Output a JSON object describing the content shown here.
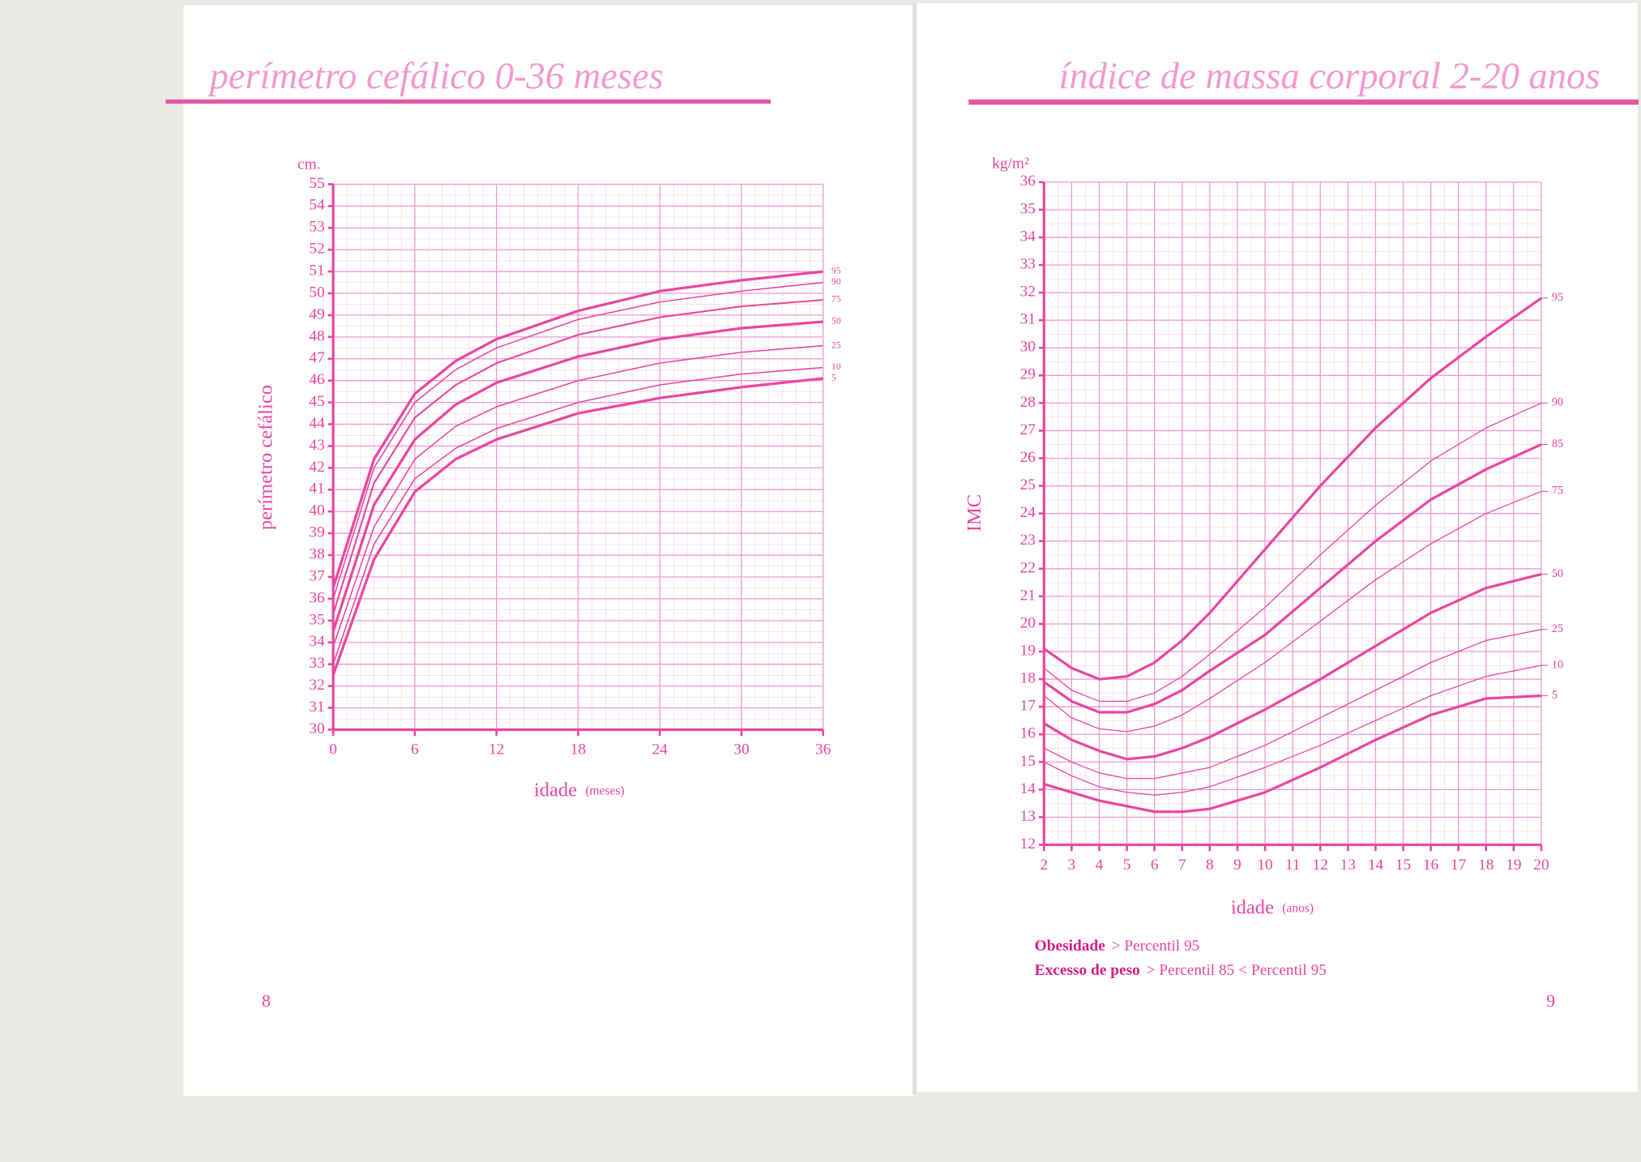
{
  "chart_data": [
    {
      "type": "line",
      "title": "perímetro cefálico 0-36 meses",
      "y_unit": "cm.",
      "ylabel": "perímetro cefálico",
      "xlabel": "idade",
      "xlabel_unit": "(meses)",
      "x": [
        0,
        3,
        6,
        9,
        12,
        18,
        24,
        30,
        36
      ],
      "xlim": [
        0,
        36
      ],
      "xticks": [
        0,
        6,
        12,
        18,
        24,
        30,
        36
      ],
      "ylim": [
        30,
        55
      ],
      "yticks": [
        30,
        31,
        32,
        33,
        34,
        35,
        36,
        37,
        38,
        39,
        40,
        41,
        42,
        43,
        44,
        45,
        46,
        47,
        48,
        49,
        50,
        51,
        52,
        53,
        54,
        55
      ],
      "grid": true,
      "series": [
        {
          "name": "95",
          "color": "#e8489f",
          "width": 2.5,
          "values": [
            36.5,
            42.4,
            45.4,
            46.9,
            47.9,
            49.2,
            50.1,
            50.6,
            51.0
          ]
        },
        {
          "name": "90",
          "color": "#e8489f",
          "width": 1.2,
          "values": [
            36.0,
            42.0,
            45.0,
            46.5,
            47.5,
            48.8,
            49.6,
            50.1,
            50.5
          ]
        },
        {
          "name": "75",
          "color": "#e8489f",
          "width": 1.6,
          "values": [
            35.3,
            41.3,
            44.3,
            45.8,
            46.8,
            48.1,
            48.9,
            49.4,
            49.7
          ]
        },
        {
          "name": "50",
          "color": "#e8489f",
          "width": 2.5,
          "values": [
            34.5,
            40.3,
            43.3,
            44.9,
            45.9,
            47.1,
            47.9,
            48.4,
            48.7
          ]
        },
        {
          "name": "25",
          "color": "#e8489f",
          "width": 1.2,
          "values": [
            33.8,
            39.3,
            42.4,
            43.9,
            44.8,
            46.0,
            46.8,
            47.3,
            47.6
          ]
        },
        {
          "name": "10",
          "color": "#e8489f",
          "width": 1.2,
          "values": [
            33.0,
            38.5,
            41.5,
            42.9,
            43.8,
            45.0,
            45.8,
            46.3,
            46.6
          ]
        },
        {
          "name": "5",
          "color": "#e8489f",
          "width": 2.5,
          "values": [
            32.5,
            37.8,
            40.9,
            42.4,
            43.3,
            44.5,
            45.2,
            45.7,
            46.1
          ]
        }
      ]
    },
    {
      "type": "line",
      "title": "índice de massa corporal 2-20 anos",
      "y_unit": "kg/m²",
      "ylabel": "IMC",
      "xlabel": "idade",
      "xlabel_unit": "(anos)",
      "x": [
        2,
        3,
        4,
        5,
        6,
        7,
        8,
        10,
        12,
        14,
        16,
        18,
        20
      ],
      "xlim": [
        2,
        20
      ],
      "xticks": [
        2,
        3,
        4,
        5,
        6,
        7,
        8,
        9,
        10,
        11,
        12,
        13,
        14,
        15,
        16,
        17,
        18,
        19,
        20
      ],
      "ylim": [
        12,
        36
      ],
      "yticks": [
        12,
        13,
        14,
        15,
        16,
        17,
        18,
        19,
        20,
        21,
        22,
        23,
        24,
        25,
        26,
        27,
        28,
        29,
        30,
        31,
        32,
        33,
        34,
        35,
        36
      ],
      "grid": true,
      "series": [
        {
          "name": "95",
          "color": "#e8489f",
          "width": 2.5,
          "values": [
            19.1,
            18.4,
            18.0,
            18.1,
            18.6,
            19.4,
            20.4,
            22.7,
            25.0,
            27.1,
            28.9,
            30.4,
            31.8
          ]
        },
        {
          "name": "90",
          "color": "#e8489f",
          "width": 1,
          "values": [
            18.4,
            17.6,
            17.2,
            17.2,
            17.5,
            18.1,
            18.9,
            20.6,
            22.5,
            24.3,
            25.9,
            27.1,
            28.0
          ]
        },
        {
          "name": "85",
          "color": "#e8489f",
          "width": 2.5,
          "values": [
            17.9,
            17.2,
            16.8,
            16.8,
            17.1,
            17.6,
            18.3,
            19.6,
            21.3,
            23.0,
            24.5,
            25.6,
            26.5
          ]
        },
        {
          "name": "75",
          "color": "#e8489f",
          "width": 1,
          "values": [
            17.4,
            16.6,
            16.2,
            16.1,
            16.3,
            16.7,
            17.3,
            18.6,
            20.1,
            21.6,
            22.9,
            24.0,
            24.8
          ]
        },
        {
          "name": "50",
          "color": "#e8489f",
          "width": 2.5,
          "values": [
            16.4,
            15.8,
            15.4,
            15.1,
            15.2,
            15.5,
            15.9,
            16.9,
            18.0,
            19.2,
            20.4,
            21.3,
            21.8
          ]
        },
        {
          "name": "25",
          "color": "#e8489f",
          "width": 1,
          "values": [
            15.5,
            15.0,
            14.6,
            14.4,
            14.4,
            14.6,
            14.8,
            15.6,
            16.6,
            17.6,
            18.6,
            19.4,
            19.8
          ]
        },
        {
          "name": "10",
          "color": "#e8489f",
          "width": 1,
          "values": [
            15.0,
            14.5,
            14.1,
            13.9,
            13.8,
            13.9,
            14.1,
            14.8,
            15.6,
            16.5,
            17.4,
            18.1,
            18.5
          ]
        },
        {
          "name": "5",
          "color": "#e8489f",
          "width": 2.5,
          "values": [
            14.2,
            13.9,
            13.6,
            13.4,
            13.2,
            13.2,
            13.3,
            13.9,
            14.8,
            15.8,
            16.7,
            17.3,
            17.4
          ]
        }
      ],
      "notes": [
        {
          "term": "Obesidade",
          "text": "> Percentil 95"
        },
        {
          "term": "Excesso de peso",
          "text": "> Percentil 85 < Percentil 95"
        }
      ]
    }
  ],
  "pages": [
    8,
    9
  ]
}
